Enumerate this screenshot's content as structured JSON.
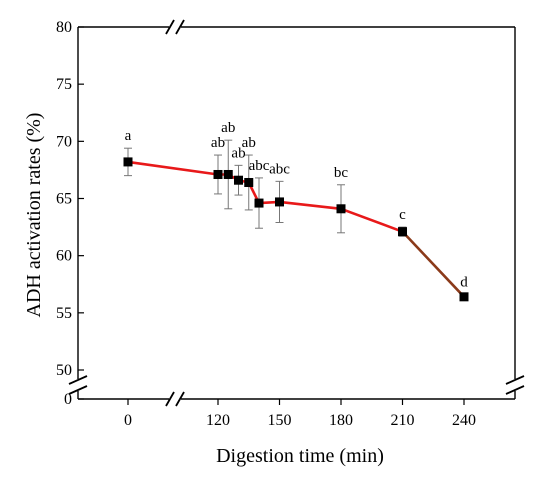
{
  "chart_data": {
    "type": "line",
    "xlabel": "Digestion time (min)",
    "ylabel": "ADH activation rates (%)",
    "x_ticks": [
      0,
      120,
      150,
      180,
      210,
      240
    ],
    "x_tick_labels": [
      "0",
      "120",
      "150",
      "180",
      "210",
      "240"
    ],
    "y_ticks": [
      50,
      55,
      60,
      65,
      70,
      75,
      80
    ],
    "y_tick_labels": [
      "50",
      "55",
      "60",
      "65",
      "70",
      "75",
      "80"
    ],
    "y_zero_label": "0",
    "x_break_between": [
      0,
      120
    ],
    "y_break_between": [
      0,
      50
    ],
    "ylim": [
      50,
      80
    ],
    "grid": false,
    "series": [
      {
        "line_color": "#e8191a",
        "tail_color": "#8b3a1a",
        "marker_color": "#000000",
        "points": [
          {
            "x": 0,
            "y": 68.2,
            "err": 1.2,
            "label": "a"
          },
          {
            "x": 120,
            "y": 67.1,
            "err": 1.7,
            "label": "ab"
          },
          {
            "x": 125,
            "y": 67.1,
            "err": 3.0,
            "label": "ab"
          },
          {
            "x": 130,
            "y": 66.6,
            "err": 1.3,
            "label": "ab"
          },
          {
            "x": 135,
            "y": 66.4,
            "err": 2.4,
            "label": "ab"
          },
          {
            "x": 140,
            "y": 64.6,
            "err": 2.2,
            "label": "abc"
          },
          {
            "x": 150,
            "y": 64.7,
            "err": 1.8,
            "label": "abc"
          },
          {
            "x": 180,
            "y": 64.1,
            "err": 2.1,
            "label": "bc"
          },
          {
            "x": 210,
            "y": 62.1,
            "err": 0.4,
            "label": "c"
          },
          {
            "x": 240,
            "y": 56.4,
            "err": 0.2,
            "label": "d"
          }
        ]
      }
    ]
  }
}
